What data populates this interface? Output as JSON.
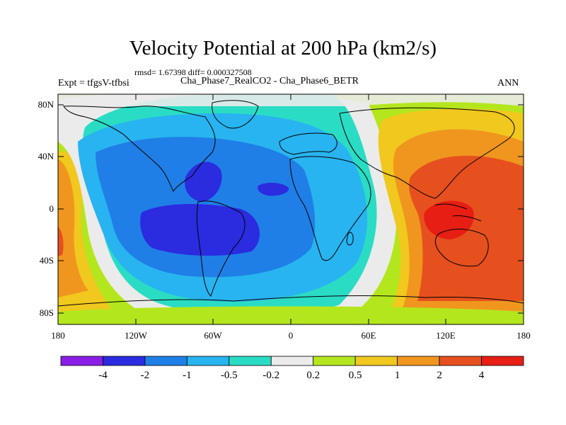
{
  "title": "Velocity Potential at 200 hPa (km2/s)",
  "stats": "rmsd= 1.67398 diff= 0.000327508",
  "experiment": "Expt = tfgsV-tfbsi",
  "subtitle": "Cha_Phase7_RealCO2 - Cha_Phase6_BETR",
  "season": "ANN",
  "lat_ticks": [
    "80N",
    "40N",
    "0",
    "40S",
    "80S"
  ],
  "lon_ticks": [
    "180",
    "120W",
    "60W",
    "0",
    "60E",
    "120E",
    "180"
  ],
  "colorbar": {
    "labels": [
      "-4",
      "-2",
      "-1",
      "-0.5",
      "-0.2",
      "0.2",
      "0.5",
      "1",
      "2",
      "4"
    ],
    "colors": [
      "#8a1ee6",
      "#2b2be0",
      "#1f7fe6",
      "#28b4f0",
      "#2adcc4",
      "#ebebeb",
      "#b4e61e",
      "#f0c81e",
      "#f0961e",
      "#e6501e",
      "#e61e14"
    ]
  }
}
